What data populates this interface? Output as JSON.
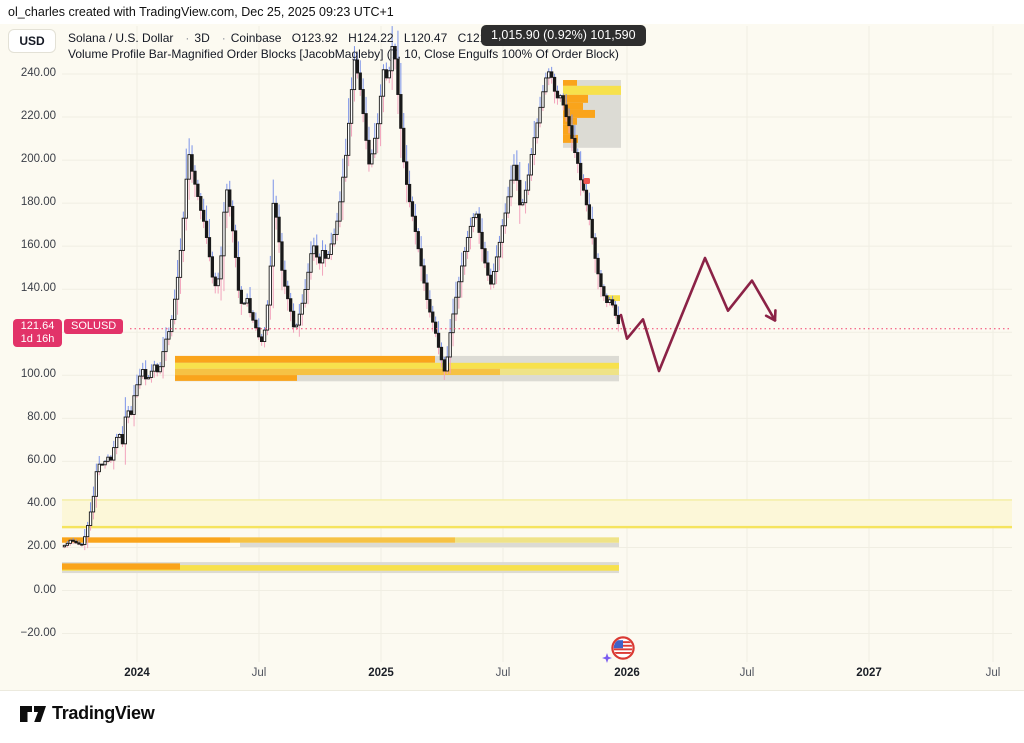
{
  "attribution": "ol_charles created with TradingView.com, Dec 25, 2025 09:23 UTC+1",
  "header": {
    "currency_button": "USD",
    "symbol_line": {
      "title": "Solana / U.S. Dollar",
      "sep": "·",
      "interval": "3D",
      "exchange": "Coinbase",
      "ohlc": {
        "open": "O123.92",
        "high": "H124.22",
        "low": "L120.47",
        "close": "C121.64",
        "change": "−2.28 (−1.84%)"
      }
    },
    "indicator_line": "Volume Profile Bar-Magnified Order Blocks [JacobMagleby] (7, 10, Close Engulfs 100% Of Order Block)",
    "tooltip": "1,015.90 (0.92%) 101,590"
  },
  "price_label": {
    "price": "121.64",
    "countdown": "1d 16h",
    "symbol": "SOLUSD"
  },
  "price_scale": {
    "ticks": [
      {
        "label": "240.00",
        "price": 240
      },
      {
        "label": "220.00",
        "price": 220
      },
      {
        "label": "200.00",
        "price": 200
      },
      {
        "label": "180.00",
        "price": 180
      },
      {
        "label": "160.00",
        "price": 160
      },
      {
        "label": "140.00",
        "price": 140
      },
      {
        "label": "120.00",
        "price": 120
      },
      {
        "label": "100.00",
        "price": 100
      },
      {
        "label": "80.00",
        "price": 80
      },
      {
        "label": "60.00",
        "price": 60
      },
      {
        "label": "40.00",
        "price": 40
      },
      {
        "label": "20.00",
        "price": 20
      },
      {
        "label": "0.00",
        "price": 0
      },
      {
        "label": "−20.00",
        "price": -20
      }
    ]
  },
  "time_scale": {
    "ticks": [
      {
        "label": "2024",
        "x": 137,
        "major": true
      },
      {
        "label": "Jul",
        "x": 259,
        "major": false
      },
      {
        "label": "2025",
        "x": 381,
        "major": true
      },
      {
        "label": "Jul",
        "x": 503,
        "major": false
      },
      {
        "label": "2026",
        "x": 627,
        "major": true
      },
      {
        "label": "Jul",
        "x": 747,
        "major": false
      },
      {
        "label": "2027",
        "x": 869,
        "major": true
      },
      {
        "label": "Jul",
        "x": 993,
        "major": false
      }
    ]
  },
  "footer": {
    "brand": "TradingView"
  },
  "colors": {
    "background": "#fcfaf1",
    "grid": "#f0eee3",
    "body": "#191919",
    "body_up_fill": "#ffffff",
    "wick_up": "#7b93e8",
    "wick_down": "#f2a3bc",
    "orange": "#faa41b",
    "yellow": "#f7e14c",
    "gold": "#f6c244",
    "pale": "#efe387",
    "gray": "#dcdbd4",
    "band_fill": "#fcf7d8",
    "band_top": "#f3eda0",
    "band_bottom": "#f5e45e",
    "price_line": "#f43f6d",
    "projection": "#8b2246",
    "label_pink": "#e23369",
    "red_marker": "#ef5350"
  },
  "chart_data": {
    "type": "candlestick",
    "symbol": "SOLUSD",
    "title": "Solana / U.S. Dollar",
    "interval": "3D",
    "exchange": "Coinbase",
    "last_price": 121.64,
    "last_ohlc": {
      "open": 123.92,
      "high": 124.22,
      "low": 120.47,
      "close": 121.64,
      "change": -2.28,
      "change_pct": -1.84
    },
    "ylim": [
      -33,
      263
    ],
    "grid": true,
    "price_axis_side": "left",
    "x_axis_anchors": {
      "2024-01": 137,
      "2024-07": 259,
      "2025-01": 381,
      "2025-07": 503,
      "2026-01": 627,
      "2026-07": 747,
      "2027-01": 869,
      "2027-07": 993
    },
    "y_map": "y_px = 590.5 - price * 2.1521",
    "price_path": [
      [
        63,
        20.3
      ],
      [
        68,
        21.5
      ],
      [
        72,
        23.5
      ],
      [
        78,
        22
      ],
      [
        83,
        21
      ],
      [
        87,
        26
      ],
      [
        91,
        34
      ],
      [
        95,
        44
      ],
      [
        98,
        56
      ],
      [
        102,
        60
      ],
      [
        105,
        57
      ],
      [
        108,
        63
      ],
      [
        112,
        60
      ],
      [
        116,
        68
      ],
      [
        120,
        74
      ],
      [
        124,
        68
      ],
      [
        128,
        86
      ],
      [
        132,
        80
      ],
      [
        136,
        92
      ],
      [
        140,
        98
      ],
      [
        144,
        103
      ],
      [
        148,
        97
      ],
      [
        152,
        101
      ],
      [
        156,
        105
      ],
      [
        160,
        100
      ],
      [
        164,
        110
      ],
      [
        168,
        118
      ],
      [
        172,
        122
      ],
      [
        176,
        135
      ],
      [
        180,
        149
      ],
      [
        184,
        168
      ],
      [
        188,
        193
      ],
      [
        191,
        204
      ],
      [
        194,
        193
      ],
      [
        198,
        186
      ],
      [
        202,
        177
      ],
      [
        206,
        170
      ],
      [
        210,
        158
      ],
      [
        214,
        145
      ],
      [
        218,
        140
      ],
      [
        222,
        152
      ],
      [
        226,
        180
      ],
      [
        229,
        188
      ],
      [
        232,
        175
      ],
      [
        236,
        160
      ],
      [
        240,
        139
      ],
      [
        244,
        131
      ],
      [
        248,
        137
      ],
      [
        252,
        128
      ],
      [
        256,
        124
      ],
      [
        260,
        118
      ],
      [
        264,
        115
      ],
      [
        268,
        127
      ],
      [
        272,
        152
      ],
      [
        275,
        183
      ],
      [
        278,
        172
      ],
      [
        281,
        160
      ],
      [
        284,
        146
      ],
      [
        288,
        138
      ],
      [
        292,
        130
      ],
      [
        296,
        120
      ],
      [
        300,
        127
      ],
      [
        304,
        134
      ],
      [
        308,
        143
      ],
      [
        312,
        156
      ],
      [
        316,
        161
      ],
      [
        320,
        150
      ],
      [
        324,
        158
      ],
      [
        328,
        153
      ],
      [
        332,
        160
      ],
      [
        336,
        166
      ],
      [
        340,
        175
      ],
      [
        344,
        191
      ],
      [
        348,
        205
      ],
      [
        352,
        228
      ],
      [
        356,
        247
      ],
      [
        359,
        240
      ],
      [
        362,
        232
      ],
      [
        365,
        220
      ],
      [
        368,
        207
      ],
      [
        371,
        196
      ],
      [
        374,
        205
      ],
      [
        377,
        212
      ],
      [
        380,
        219
      ],
      [
        383,
        235
      ],
      [
        386,
        246
      ],
      [
        389,
        233
      ],
      [
        392,
        248
      ],
      [
        395,
        257
      ],
      [
        398,
        237
      ],
      [
        401,
        223
      ],
      [
        404,
        204
      ],
      [
        407,
        192
      ],
      [
        410,
        183
      ],
      [
        413,
        176
      ],
      [
        416,
        169
      ],
      [
        420,
        158
      ],
      [
        424,
        147
      ],
      [
        428,
        136
      ],
      [
        432,
        128
      ],
      [
        436,
        122
      ],
      [
        440,
        113
      ],
      [
        444,
        105
      ],
      [
        447,
        100
      ],
      [
        450,
        115
      ],
      [
        453,
        124
      ],
      [
        456,
        133
      ],
      [
        459,
        140
      ],
      [
        462,
        148
      ],
      [
        465,
        155
      ],
      [
        468,
        162
      ],
      [
        471,
        168
      ],
      [
        474,
        172
      ],
      [
        477,
        177
      ],
      [
        480,
        168
      ],
      [
        483,
        160
      ],
      [
        486,
        153
      ],
      [
        489,
        147
      ],
      [
        492,
        142
      ],
      [
        495,
        148
      ],
      [
        498,
        155
      ],
      [
        501,
        162
      ],
      [
        504,
        170
      ],
      [
        507,
        176
      ],
      [
        510,
        184
      ],
      [
        513,
        192
      ],
      [
        516,
        199
      ],
      [
        519,
        188
      ],
      [
        522,
        176
      ],
      [
        525,
        182
      ],
      [
        528,
        188
      ],
      [
        531,
        196
      ],
      [
        534,
        207
      ],
      [
        537,
        213
      ],
      [
        540,
        221
      ],
      [
        543,
        228
      ],
      [
        546,
        236
      ],
      [
        549,
        241
      ],
      [
        552,
        241
      ],
      [
        555,
        234
      ],
      [
        558,
        228
      ],
      [
        561,
        231
      ],
      [
        564,
        227
      ],
      [
        567,
        221
      ],
      [
        570,
        217
      ],
      [
        573,
        211
      ],
      [
        576,
        204
      ],
      [
        579,
        199
      ],
      [
        582,
        191
      ],
      [
        585,
        186
      ],
      [
        588,
        179
      ],
      [
        591,
        172
      ],
      [
        594,
        163
      ],
      [
        597,
        153
      ],
      [
        600,
        146
      ],
      [
        603,
        140
      ],
      [
        606,
        136
      ],
      [
        609,
        133
      ],
      [
        612,
        136
      ],
      [
        615,
        131
      ],
      [
        618,
        126
      ],
      [
        622,
        121.6
      ]
    ],
    "projection_arrow": {
      "points": [
        [
          621,
          128
        ],
        [
          627,
          117
        ],
        [
          643,
          126
        ],
        [
          659,
          102
        ],
        [
          705,
          154.5
        ],
        [
          728,
          130
        ],
        [
          752,
          144
        ],
        [
          775,
          125.5
        ]
      ],
      "style": "zigzag-arrow"
    },
    "current_price_line": {
      "price": 121.64,
      "style": "dotted"
    },
    "band": {
      "p1": 28.9,
      "p2": 42.1,
      "x1": 62,
      "x2": 1012
    },
    "order_blocks": [
      {
        "name": "supply-block-206-237",
        "box": {
          "x1": 563,
          "x2": 621,
          "p1": 205.7,
          "p2": 237.2
        },
        "bars": [
          {
            "p1": 234.5,
            "p2": 237.2,
            "x1": 563,
            "x2": 577,
            "c": "orange"
          },
          {
            "p1": 230.3,
            "p2": 234.5,
            "x1": 563,
            "x2": 621,
            "c": "yellow"
          },
          {
            "p1": 226.6,
            "p2": 230.3,
            "x1": 563,
            "x2": 588,
            "c": "orange"
          },
          {
            "p1": 223.3,
            "p2": 226.6,
            "x1": 563,
            "x2": 583,
            "c": "orange"
          },
          {
            "p1": 219.6,
            "p2": 223.3,
            "x1": 563,
            "x2": 595,
            "c": "orange"
          },
          {
            "p1": 216.4,
            "p2": 219.6,
            "x1": 563,
            "x2": 577,
            "c": "orange"
          },
          {
            "p1": 211.7,
            "p2": 216.4,
            "x1": 563,
            "x2": 570,
            "c": "orange"
          },
          {
            "p1": 208.0,
            "p2": 211.7,
            "x1": 563,
            "x2": 578,
            "c": "orange"
          }
        ]
      },
      {
        "name": "demand-block-97-109",
        "box": {
          "x1": 175,
          "x2": 619,
          "p1": 97.2,
          "p2": 109
        },
        "bars": [
          {
            "p1": 105.8,
            "p2": 109.0,
            "x1": 175,
            "x2": 435,
            "c": "orange"
          },
          {
            "p1": 103.0,
            "p2": 105.8,
            "x1": 175,
            "x2": 619,
            "c": "yellow"
          },
          {
            "p1": 100.1,
            "p2": 103.0,
            "x1": 175,
            "x2": 500,
            "c": "gold"
          },
          {
            "p1": 100.1,
            "p2": 103.0,
            "x1": 500,
            "x2": 619,
            "c": "pale"
          },
          {
            "p1": 97.4,
            "p2": 100.1,
            "x1": 175,
            "x2": 297,
            "c": "orange"
          }
        ]
      },
      {
        "name": "demand-block-20-25",
        "box": null,
        "bars": [
          {
            "p1": 20.2,
            "p2": 22.2,
            "x1": 240,
            "x2": 619,
            "c": "gray"
          },
          {
            "p1": 22.2,
            "p2": 24.7,
            "x1": 62,
            "x2": 230,
            "c": "orange"
          },
          {
            "p1": 22.2,
            "p2": 24.7,
            "x1": 230,
            "x2": 455,
            "c": "gold"
          },
          {
            "p1": 22.2,
            "p2": 24.7,
            "x1": 455,
            "x2": 619,
            "c": "pale"
          }
        ]
      },
      {
        "name": "demand-block-8-13",
        "box": {
          "x1": 62,
          "x2": 619,
          "p1": 8.1,
          "p2": 13.2
        },
        "bars": [
          {
            "p1": 9.2,
            "p2": 11.8,
            "x1": 62,
            "x2": 619,
            "c": "yellow"
          },
          {
            "p1": 9.7,
            "p2": 12.6,
            "x1": 62,
            "x2": 180,
            "c": "orange"
          }
        ]
      },
      {
        "name": "mini-block-134-137",
        "box": null,
        "bars": [
          {
            "p1": 134.5,
            "p2": 137.2,
            "x1": 608,
            "x2": 620,
            "c": "yellow"
          }
        ]
      }
    ],
    "red_marker": {
      "x": 583.5,
      "y": 178,
      "w": 6.5,
      "h": 6
    },
    "event_marker": {
      "x": 622,
      "y": 650,
      "type": "us-flag-economic-event",
      "label_below": "2026"
    }
  }
}
